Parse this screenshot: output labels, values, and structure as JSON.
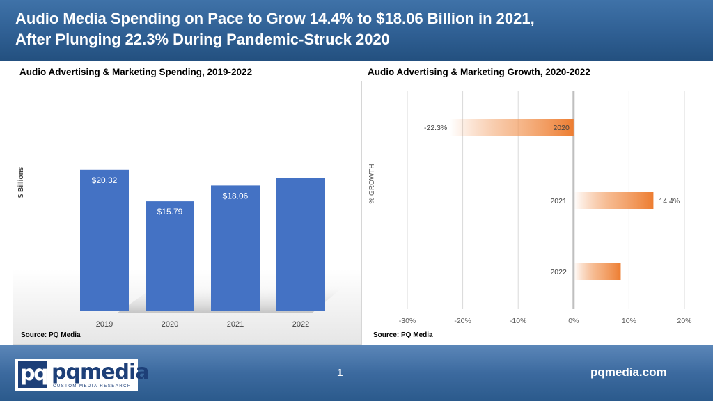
{
  "header": {
    "title_line1": "Audio Media Spending on Pace to Grow 14.4% to $18.06 Billion in 2021,",
    "title_line2": "After Plunging 22.3% During Pandemic-Struck 2020"
  },
  "colors": {
    "header_bg": "#2f5f93",
    "bar_blue": "#4472c4",
    "bar_orange": "#ed7d31",
    "footer_bg": "#3c6a9f"
  },
  "chart_data": [
    {
      "type": "bar",
      "title": "Audio Advertising & Marketing Spending, 2019-2022",
      "ylabel": "$ Billions",
      "xlabel": "",
      "categories": [
        "2019",
        "2020",
        "2021",
        "2022"
      ],
      "values": [
        20.32,
        15.79,
        18.06,
        19.1
      ],
      "data_labels": [
        "$20.32",
        "$15.79",
        "$18.06",
        ""
      ],
      "ylim": [
        0,
        30
      ],
      "grid": false,
      "source_prefix": "Source:",
      "source_name": "PQ Media"
    },
    {
      "type": "bar",
      "orientation": "horizontal",
      "title": "Audio Advertising & Marketing Growth, 2020-2022",
      "ylabel": "% GROWTH",
      "categories": [
        "2020",
        "2021",
        "2022"
      ],
      "values": [
        -22.3,
        14.4,
        8.5
      ],
      "data_labels": [
        "-22.3%",
        "14.4%",
        ""
      ],
      "xlim": [
        -30,
        20
      ],
      "xticks": [
        -30,
        -20,
        -10,
        0,
        10,
        20
      ],
      "tick_labels": [
        "-30%",
        "-20%",
        "-10%",
        "0%",
        "10%",
        "20%"
      ],
      "grid": true,
      "source_prefix": "Source:",
      "source_name": "PQ Media"
    }
  ],
  "footer": {
    "logo_pq_p": "p",
    "logo_pq_q": "q",
    "logo_word": "pqmedia",
    "logo_tagline": "CUSTOM MEDIA RESEARCH",
    "page_number": "1",
    "website": "pqmedia.com"
  }
}
